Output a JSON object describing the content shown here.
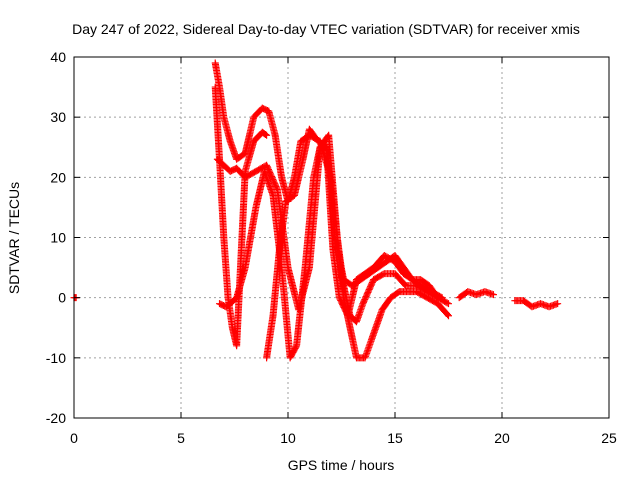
{
  "chart_data": {
    "type": "scatter",
    "title": "Day 247 of 2022, Sidereal Day-to-day VTEC variation (SDTVAR) for receiver xmis",
    "xlabel": "GPS time / hours",
    "ylabel": "SDTVAR / TECUs",
    "xlim": [
      0,
      25
    ],
    "ylim": [
      -20,
      40
    ],
    "xticks": [
      0,
      5,
      10,
      15,
      20,
      25
    ],
    "yticks": [
      -20,
      -10,
      0,
      10,
      20,
      30,
      40
    ],
    "grid": true,
    "marker": "+",
    "series_color": "#ff0000",
    "series": [
      {
        "name": "segment-0",
        "x": [
          0,
          0.1
        ],
        "y": [
          0,
          0
        ]
      },
      {
        "name": "segment-1",
        "x": [
          6.6,
          6.8,
          7.0,
          7.3,
          7.6,
          8.0,
          8.4,
          8.8,
          9.1,
          9.4,
          9.7,
          10.0,
          10.3,
          10.6,
          11.0,
          11.5,
          12.0,
          12.3,
          12.6,
          12.9,
          13.2,
          13.6,
          14.0,
          14.4,
          14.8,
          15.2,
          15.6,
          16.0,
          16.5,
          17.0,
          17.5
        ],
        "y": [
          39,
          35,
          30,
          26,
          23,
          24,
          30,
          31.5,
          31,
          27,
          20,
          16,
          20,
          26,
          27,
          26,
          20,
          10,
          0,
          -5,
          -10,
          -10,
          -6,
          -2,
          0,
          1,
          1,
          1,
          0,
          -1,
          -3
        ]
      },
      {
        "name": "segment-2",
        "x": [
          6.6,
          6.8,
          7.0,
          7.2,
          7.4,
          7.6,
          8.0,
          8.4,
          8.8,
          9.0
        ],
        "y": [
          35,
          23,
          10,
          0,
          -5,
          -8,
          21,
          26,
          27.5,
          27
        ]
      },
      {
        "name": "segment-3",
        "x": [
          6.7,
          7.0,
          7.3,
          7.6,
          8.0,
          8.5,
          9.0,
          9.5,
          10.0,
          10.5,
          11.0,
          11.5,
          11.9,
          12.3,
          12.6,
          12.9,
          13.2,
          13.5,
          14.0,
          14.5,
          15.0,
          15.5,
          16.0,
          16.5,
          17.0
        ],
        "y": [
          23,
          22,
          21,
          21.5,
          20,
          21,
          22,
          18,
          5,
          -2,
          5,
          25,
          27,
          10,
          2,
          -3,
          -4,
          -1,
          3,
          4,
          4,
          2,
          2,
          1,
          0
        ]
      },
      {
        "name": "segment-4",
        "x": [
          6.8,
          7.1,
          7.3,
          7.6,
          8.0,
          8.5,
          8.9,
          9.3,
          9.7,
          10.1,
          10.4,
          10.8,
          11.2,
          11.5,
          11.8,
          12.1,
          12.4,
          12.8,
          13.2,
          13.6,
          14.0,
          14.5,
          15.0,
          15.4,
          15.8,
          16.2,
          16.6,
          17.0,
          17.5
        ],
        "y": [
          -1,
          -1.5,
          -1,
          0,
          5,
          15,
          21,
          17,
          5,
          -10,
          -8,
          5,
          20,
          25,
          25,
          8,
          0,
          -3,
          3,
          4,
          5,
          7,
          6,
          4,
          3,
          3,
          2,
          0,
          -1
        ]
      },
      {
        "name": "segment-5",
        "x": [
          9.0,
          9.3,
          9.6,
          9.9,
          10.3,
          10.7,
          11.0,
          11.4,
          11.8,
          12.2,
          12.6,
          13.0,
          13.4,
          13.8,
          14.2,
          14.6,
          15.0,
          15.4,
          15.8,
          16.2,
          16.7,
          17.2
        ],
        "y": [
          -10,
          -3,
          8,
          16,
          17,
          23,
          28,
          26,
          25,
          10,
          3,
          2,
          3,
          4,
          5,
          6,
          7,
          5,
          3,
          2,
          1,
          0
        ]
      },
      {
        "name": "segment-6",
        "x": [
          18.0,
          18.4,
          18.8,
          19.2,
          19.6
        ],
        "y": [
          0,
          1,
          0.5,
          1,
          0.5
        ]
      },
      {
        "name": "segment-7",
        "x": [
          20.6,
          21.0,
          21.4,
          21.8,
          22.2,
          22.6
        ],
        "y": [
          -0.5,
          -0.5,
          -1.5,
          -1,
          -1.5,
          -1
        ]
      }
    ]
  }
}
